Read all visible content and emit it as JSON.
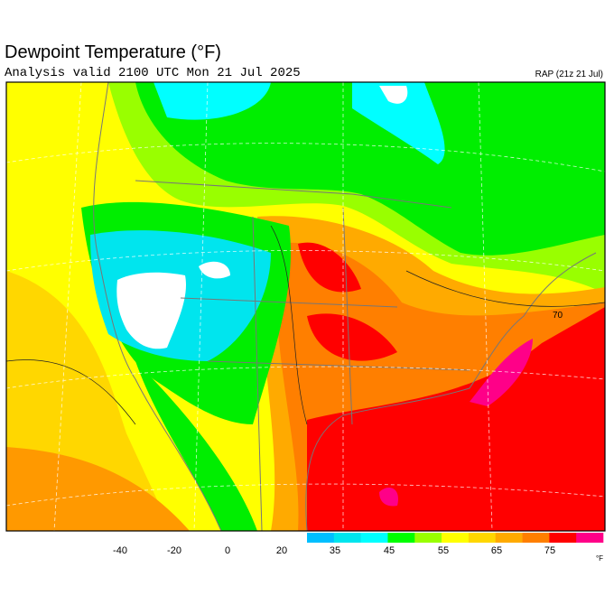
{
  "header": {
    "title": "Dewpoint Temperature (°F)",
    "subtitle": "Analysis valid 2100 UTC Mon 21 Jul 2025",
    "model": "RAP (21z 21 Jul)"
  },
  "map": {
    "contour_label": "70"
  },
  "colorbar": {
    "ticks": [
      -40,
      -20,
      0,
      20,
      35,
      45,
      55,
      65,
      75
    ],
    "unit": "°F",
    "colors": [
      "#00bfff",
      "#00e5ee",
      "#00ffff",
      "#00ff00",
      "#99ff00",
      "#ffff00",
      "#ffd700",
      "#ffaa00",
      "#ff7f00",
      "#ff0000",
      "#ff0088"
    ]
  }
}
